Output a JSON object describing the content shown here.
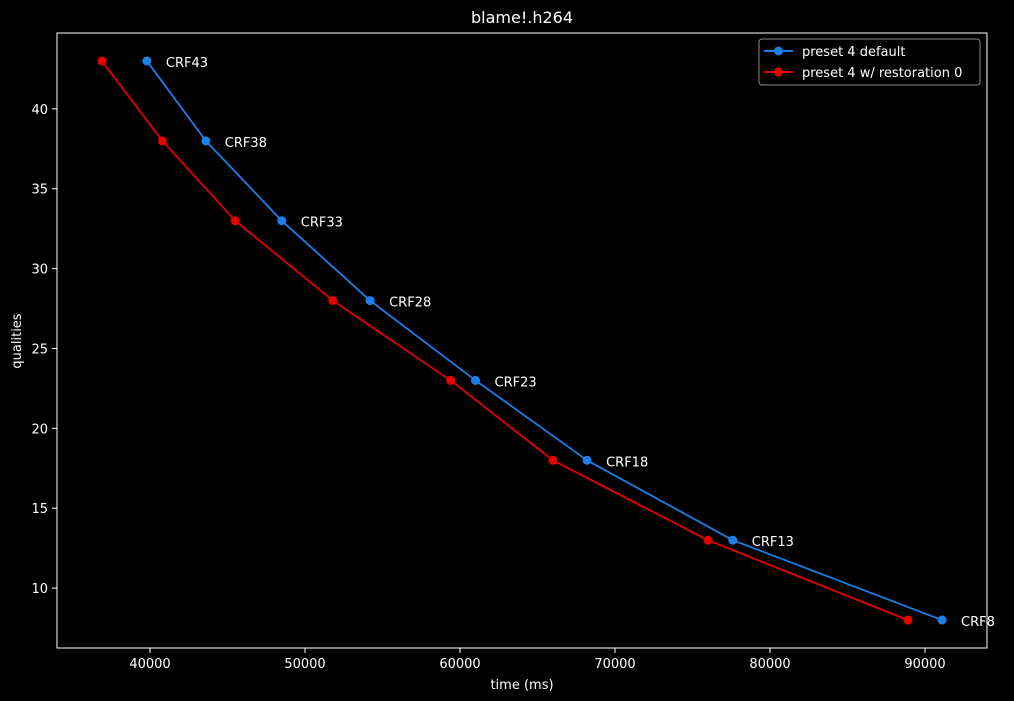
{
  "chart_data": {
    "type": "line",
    "title": "blame!.h264",
    "xlabel": "time (ms)",
    "ylabel": "qualities",
    "xlim": [
      34000,
      94000
    ],
    "ylim": [
      6.25,
      44.75
    ],
    "xticks": [
      40000,
      50000,
      60000,
      70000,
      80000,
      90000
    ],
    "yticks": [
      10,
      15,
      20,
      25,
      30,
      35,
      40
    ],
    "grid": false,
    "legend_position": "top-right",
    "series": [
      {
        "name": "preset 4 default",
        "color": "#1a7fe6",
        "x": [
          39800,
          43600,
          48500,
          54200,
          61000,
          68200,
          77600,
          91100
        ],
        "y": [
          43,
          38,
          33,
          28,
          23,
          18,
          13,
          8
        ]
      },
      {
        "name": "preset 4 w/ restoration 0",
        "color": "#e60000",
        "x": [
          36900,
          40800,
          45500,
          51800,
          59400,
          66000,
          76000,
          88900
        ],
        "y": [
          43,
          38,
          33,
          28,
          23,
          18,
          13,
          8
        ]
      }
    ],
    "annotations": [
      {
        "text": "CRF43",
        "x": 39800,
        "y": 43
      },
      {
        "text": "CRF38",
        "x": 43600,
        "y": 38
      },
      {
        "text": "CRF33",
        "x": 48500,
        "y": 33
      },
      {
        "text": "CRF28",
        "x": 54200,
        "y": 28
      },
      {
        "text": "CRF23",
        "x": 61000,
        "y": 23
      },
      {
        "text": "CRF18",
        "x": 68200,
        "y": 18
      },
      {
        "text": "CRF13",
        "x": 77600,
        "y": 13
      },
      {
        "text": "CRF8",
        "x": 91100,
        "y": 8
      }
    ]
  },
  "colors": {
    "background": "#000000",
    "foreground": "#ffffff"
  }
}
